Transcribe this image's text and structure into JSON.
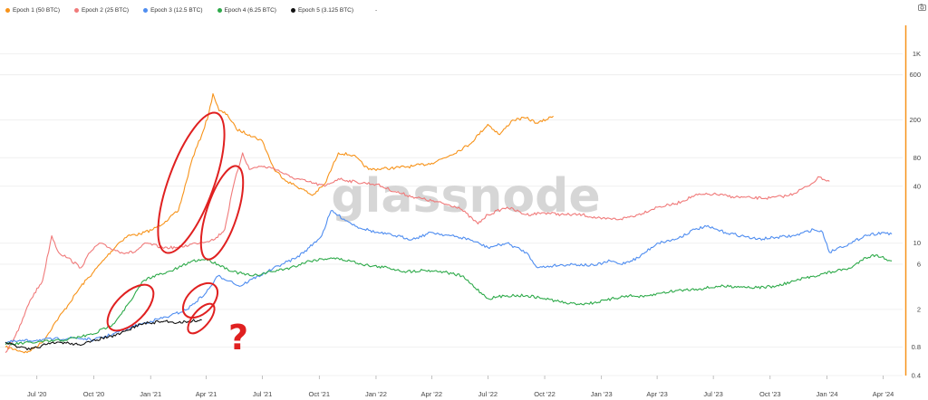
{
  "legend": {
    "items": [
      {
        "label": "Epoch 1 (50 BTC)",
        "color": "#f7931a"
      },
      {
        "label": "Epoch 2 (25 BTC)",
        "color": "#f07a7a"
      },
      {
        "label": "Epoch 3 (12.5 BTC)",
        "color": "#4f8df0"
      },
      {
        "label": "Epoch 4 (6.25 BTC)",
        "color": "#2eaa4a"
      },
      {
        "label": "Epoch 5 (3.125 BTC)",
        "color": "#111111"
      }
    ],
    "trailing": "-"
  },
  "watermark": "glassnode",
  "annotation_mark": "?",
  "icons": {
    "toolbar": "camera-icon"
  },
  "colors": {
    "axis_accent": "#f7931a",
    "annotation": "#e02020"
  },
  "chart_data": {
    "type": "line",
    "y_scale": "log",
    "ylim": [
      0.4,
      2000
    ],
    "xlim": [
      "2020-05-11",
      "2024-05-01"
    ],
    "x_ticks": [
      {
        "label": "Jul '20",
        "date": "2020-07-01"
      },
      {
        "label": "Oct '20",
        "date": "2020-10-01"
      },
      {
        "label": "Jan '21",
        "date": "2021-01-01"
      },
      {
        "label": "Apr '21",
        "date": "2021-04-01"
      },
      {
        "label": "Jul '21",
        "date": "2021-07-01"
      },
      {
        "label": "Oct '21",
        "date": "2021-10-01"
      },
      {
        "label": "Jan '22",
        "date": "2022-01-01"
      },
      {
        "label": "Apr '22",
        "date": "2022-04-01"
      },
      {
        "label": "Jul '22",
        "date": "2022-07-01"
      },
      {
        "label": "Oct '22",
        "date": "2022-10-01"
      },
      {
        "label": "Jan '23",
        "date": "2023-01-01"
      },
      {
        "label": "Apr '23",
        "date": "2023-04-01"
      },
      {
        "label": "Jul '23",
        "date": "2023-07-01"
      },
      {
        "label": "Oct '23",
        "date": "2023-10-01"
      },
      {
        "label": "Jan '24",
        "date": "2024-01-01"
      },
      {
        "label": "Apr '24",
        "date": "2024-04-01"
      }
    ],
    "y_ticks": [
      {
        "label": "1K",
        "value": 1000
      },
      {
        "label": "600",
        "value": 600
      },
      {
        "label": "200",
        "value": 200
      },
      {
        "label": "80",
        "value": 80
      },
      {
        "label": "40",
        "value": 40
      },
      {
        "label": "10",
        "value": 10
      },
      {
        "label": "6",
        "value": 6
      },
      {
        "label": "2",
        "value": 2
      },
      {
        "label": "0.8",
        "value": 0.8
      },
      {
        "label": "0.4",
        "value": 0.4
      }
    ],
    "series": [
      {
        "name": "Epoch 1 (50 BTC)",
        "color": "#f7931a",
        "points": [
          [
            "2020-05-11",
            0.8
          ],
          [
            "2020-06-15",
            0.7
          ],
          [
            "2020-07-10",
            0.9
          ],
          [
            "2020-08-01",
            1.5
          ],
          [
            "2020-08-20",
            2.2
          ],
          [
            "2020-09-10",
            3.5
          ],
          [
            "2020-10-01",
            5
          ],
          [
            "2020-10-20",
            7
          ],
          [
            "2020-11-10",
            10
          ],
          [
            "2020-11-25",
            12
          ],
          [
            "2020-12-15",
            12.5
          ],
          [
            "2021-01-05",
            14
          ],
          [
            "2021-01-25",
            17
          ],
          [
            "2021-02-15",
            22
          ],
          [
            "2021-02-28",
            45
          ],
          [
            "2021-03-10",
            80
          ],
          [
            "2021-03-25",
            140
          ],
          [
            "2021-04-05",
            230
          ],
          [
            "2021-04-12",
            380
          ],
          [
            "2021-04-22",
            250
          ],
          [
            "2021-05-05",
            230
          ],
          [
            "2021-05-20",
            160
          ],
          [
            "2021-06-10",
            140
          ],
          [
            "2021-07-01",
            120
          ],
          [
            "2021-07-20",
            60
          ],
          [
            "2021-08-10",
            45
          ],
          [
            "2021-09-01",
            38
          ],
          [
            "2021-09-20",
            32
          ],
          [
            "2021-10-10",
            42
          ],
          [
            "2021-11-01",
            90
          ],
          [
            "2021-11-25",
            85
          ],
          [
            "2021-12-20",
            60
          ],
          [
            "2022-01-25",
            62
          ],
          [
            "2022-03-01",
            65
          ],
          [
            "2022-04-01",
            70
          ],
          [
            "2022-05-01",
            85
          ],
          [
            "2022-06-01",
            110
          ],
          [
            "2022-07-01",
            180
          ],
          [
            "2022-07-20",
            140
          ],
          [
            "2022-08-10",
            200
          ],
          [
            "2022-09-01",
            210
          ],
          [
            "2022-09-20",
            185
          ],
          [
            "2022-10-15",
            220
          ]
        ]
      },
      {
        "name": "Epoch 2 (25 BTC)",
        "color": "#f07a7a",
        "points": [
          [
            "2020-05-11",
            0.7
          ],
          [
            "2020-06-01",
            1.2
          ],
          [
            "2020-06-20",
            2.5
          ],
          [
            "2020-07-10",
            4
          ],
          [
            "2020-07-25",
            12
          ],
          [
            "2020-08-05",
            8
          ],
          [
            "2020-08-20",
            7
          ],
          [
            "2020-09-10",
            5.5
          ],
          [
            "2020-09-25",
            8
          ],
          [
            "2020-10-10",
            10
          ],
          [
            "2020-10-25",
            9
          ],
          [
            "2020-11-15",
            8
          ],
          [
            "2020-12-05",
            8
          ],
          [
            "2020-12-25",
            10
          ],
          [
            "2021-01-20",
            9
          ],
          [
            "2021-02-15",
            9
          ],
          [
            "2021-03-15",
            10
          ],
          [
            "2021-04-15",
            11
          ],
          [
            "2021-05-01",
            14
          ],
          [
            "2021-05-15",
            40
          ],
          [
            "2021-05-30",
            90
          ],
          [
            "2021-06-10",
            60
          ],
          [
            "2021-06-25",
            65
          ],
          [
            "2021-07-20",
            62
          ],
          [
            "2021-08-15",
            50
          ],
          [
            "2021-09-10",
            45
          ],
          [
            "2021-10-10",
            40
          ],
          [
            "2021-11-01",
            48
          ],
          [
            "2021-12-01",
            44
          ],
          [
            "2022-01-01",
            42
          ],
          [
            "2022-02-01",
            35
          ],
          [
            "2022-03-01",
            31
          ],
          [
            "2022-04-01",
            28
          ],
          [
            "2022-05-15",
            24
          ],
          [
            "2022-06-15",
            16
          ],
          [
            "2022-07-01",
            20
          ],
          [
            "2022-08-01",
            24
          ],
          [
            "2022-09-01",
            20
          ],
          [
            "2022-10-01",
            21
          ],
          [
            "2022-11-01",
            20
          ],
          [
            "2022-12-01",
            20
          ],
          [
            "2023-01-01",
            18
          ],
          [
            "2023-02-01",
            18
          ],
          [
            "2023-03-01",
            20
          ],
          [
            "2023-04-01",
            24
          ],
          [
            "2023-05-01",
            26
          ],
          [
            "2023-06-01",
            32
          ],
          [
            "2023-07-01",
            33
          ],
          [
            "2023-08-01",
            31
          ],
          [
            "2023-09-01",
            30
          ],
          [
            "2023-10-01",
            30
          ],
          [
            "2023-11-01",
            32
          ],
          [
            "2023-12-01",
            40
          ],
          [
            "2023-12-20",
            50
          ],
          [
            "2024-01-05",
            45
          ]
        ]
      },
      {
        "name": "Epoch 3 (12.5 BTC)",
        "color": "#4f8df0",
        "points": [
          [
            "2020-05-11",
            0.9
          ],
          [
            "2020-07-01",
            0.95
          ],
          [
            "2020-09-01",
            1
          ],
          [
            "2020-10-01",
            0.95
          ],
          [
            "2020-11-01",
            1.1
          ],
          [
            "2020-12-01",
            1.3
          ],
          [
            "2021-01-01",
            1.5
          ],
          [
            "2021-02-01",
            1.7
          ],
          [
            "2021-03-01",
            2.0
          ],
          [
            "2021-04-01",
            3
          ],
          [
            "2021-04-20",
            4.5
          ],
          [
            "2021-05-10",
            4
          ],
          [
            "2021-05-25",
            3.5
          ],
          [
            "2021-06-15",
            4.2
          ],
          [
            "2021-07-10",
            5
          ],
          [
            "2021-08-01",
            6
          ],
          [
            "2021-08-25",
            7
          ],
          [
            "2021-09-15",
            9
          ],
          [
            "2021-10-05",
            12
          ],
          [
            "2021-10-20",
            22
          ],
          [
            "2021-11-10",
            18
          ],
          [
            "2021-12-01",
            15
          ],
          [
            "2022-01-01",
            13
          ],
          [
            "2022-02-01",
            12
          ],
          [
            "2022-03-01",
            11
          ],
          [
            "2022-04-01",
            13
          ],
          [
            "2022-05-01",
            12
          ],
          [
            "2022-06-01",
            11
          ],
          [
            "2022-07-01",
            9
          ],
          [
            "2022-08-01",
            10
          ],
          [
            "2022-09-01",
            8
          ],
          [
            "2022-09-20",
            5.5
          ],
          [
            "2022-10-15",
            5.8
          ],
          [
            "2022-11-15",
            6
          ],
          [
            "2022-12-20",
            5.8
          ],
          [
            "2023-01-15",
            6.5
          ],
          [
            "2023-02-01",
            6
          ],
          [
            "2023-03-01",
            7
          ],
          [
            "2023-04-01",
            10
          ],
          [
            "2023-05-01",
            11
          ],
          [
            "2023-06-01",
            14
          ],
          [
            "2023-06-20",
            15
          ],
          [
            "2023-07-20",
            13
          ],
          [
            "2023-08-15",
            12
          ],
          [
            "2023-09-10",
            11
          ],
          [
            "2023-10-10",
            11.5
          ],
          [
            "2023-11-10",
            12
          ],
          [
            "2023-12-10",
            14
          ],
          [
            "2023-12-25",
            13
          ],
          [
            "2024-01-05",
            8
          ],
          [
            "2024-01-20",
            9
          ],
          [
            "2024-02-10",
            10
          ],
          [
            "2024-03-01",
            12
          ],
          [
            "2024-04-01",
            13
          ],
          [
            "2024-04-15",
            12.5
          ]
        ]
      },
      {
        "name": "Epoch 4 (6.25 BTC)",
        "color": "#2eaa4a",
        "points": [
          [
            "2020-05-11",
            0.85
          ],
          [
            "2020-07-01",
            0.9
          ],
          [
            "2020-08-15",
            0.95
          ],
          [
            "2020-10-01",
            1.1
          ],
          [
            "2020-11-01",
            1.4
          ],
          [
            "2020-12-01",
            2.5
          ],
          [
            "2020-12-20",
            4
          ],
          [
            "2021-01-05",
            4.5
          ],
          [
            "2021-01-25",
            4.8
          ],
          [
            "2021-02-15",
            5.5
          ],
          [
            "2021-03-10",
            6.5
          ],
          [
            "2021-04-01",
            6.8
          ],
          [
            "2021-04-20",
            6
          ],
          [
            "2021-05-15",
            5
          ],
          [
            "2021-06-15",
            4.5
          ],
          [
            "2021-07-15",
            5
          ],
          [
            "2021-08-15",
            5.5
          ],
          [
            "2021-09-15",
            6.5
          ],
          [
            "2021-10-20",
            7
          ],
          [
            "2021-11-20",
            6.5
          ],
          [
            "2021-12-20",
            5.8
          ],
          [
            "2022-01-20",
            5.5
          ],
          [
            "2022-02-20",
            5
          ],
          [
            "2022-03-20",
            5.2
          ],
          [
            "2022-04-20",
            5
          ],
          [
            "2022-05-20",
            4.5
          ],
          [
            "2022-06-20",
            3
          ],
          [
            "2022-07-01",
            2.6
          ],
          [
            "2022-08-01",
            2.8
          ],
          [
            "2022-09-01",
            2.8
          ],
          [
            "2022-10-01",
            2.6
          ],
          [
            "2022-11-10",
            2.3
          ],
          [
            "2022-12-10",
            2.3
          ],
          [
            "2023-01-10",
            2.5
          ],
          [
            "2023-02-10",
            2.8
          ],
          [
            "2023-03-10",
            2.7
          ],
          [
            "2023-04-10",
            3
          ],
          [
            "2023-05-10",
            3.2
          ],
          [
            "2023-06-10",
            3.3
          ],
          [
            "2023-07-10",
            3.5
          ],
          [
            "2023-08-10",
            3.5
          ],
          [
            "2023-09-10",
            3.4
          ],
          [
            "2023-10-10",
            3.5
          ],
          [
            "2023-11-10",
            4
          ],
          [
            "2023-12-10",
            4.5
          ],
          [
            "2024-01-10",
            5
          ],
          [
            "2024-02-10",
            5.5
          ],
          [
            "2024-03-01",
            7
          ],
          [
            "2024-03-20",
            7.5
          ],
          [
            "2024-04-15",
            6.5
          ]
        ]
      },
      {
        "name": "Epoch 5 (3.125 BTC)",
        "color": "#111111",
        "points": [
          [
            "2020-05-11",
            0.9
          ],
          [
            "2020-06-01",
            0.8
          ],
          [
            "2020-06-20",
            0.75
          ],
          [
            "2020-07-15",
            0.85
          ],
          [
            "2020-08-10",
            0.9
          ],
          [
            "2020-09-05",
            0.85
          ],
          [
            "2020-09-25",
            0.9
          ],
          [
            "2020-10-15",
            1.0
          ],
          [
            "2020-11-05",
            1.05
          ],
          [
            "2020-11-25",
            1.2
          ],
          [
            "2020-12-15",
            1.4
          ],
          [
            "2021-01-05",
            1.45
          ],
          [
            "2021-01-25",
            1.5
          ],
          [
            "2021-02-15",
            1.45
          ],
          [
            "2021-03-05",
            1.5
          ],
          [
            "2021-03-25",
            1.55
          ]
        ]
      }
    ]
  }
}
